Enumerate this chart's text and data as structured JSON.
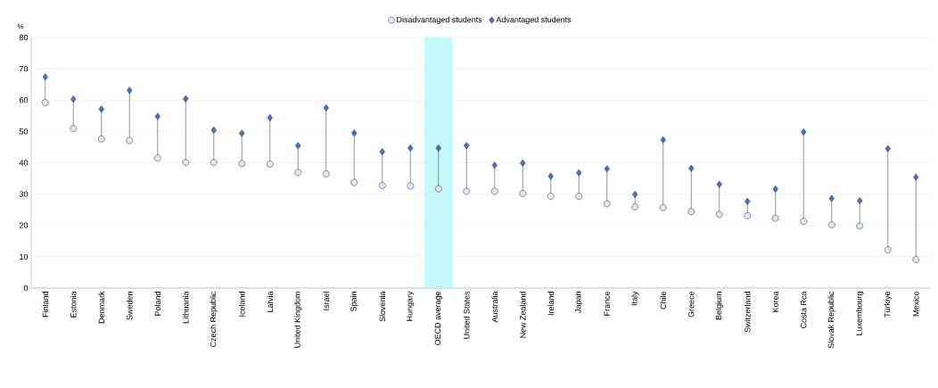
{
  "chart_data": {
    "type": "scatter",
    "ylabel": "%",
    "categories": [
      "Finland",
      "Estonia",
      "Denmark",
      "Sweden",
      "Poland",
      "Lithuania",
      "Czech Republic",
      "Iceland",
      "Latvia",
      "United Kingdom",
      "Israel",
      "Spain",
      "Slovenia",
      "Hungary",
      "OECD average",
      "United States",
      "Australia",
      "New Zealand",
      "Ireland",
      "Japan",
      "France",
      "Italy",
      "Chile",
      "Greece",
      "Belgium",
      "Switzerland",
      "Korea",
      "Costa Rca",
      "Slovak Republic",
      "Luxembourg",
      "Türkiye",
      "Mexico"
    ],
    "series": [
      {
        "name": "Disadvantaged students",
        "color": "#dce6f5",
        "marker": "circle",
        "values": [
          59.2,
          50.9,
          47.6,
          47.1,
          41.5,
          40.1,
          40.1,
          39.7,
          39.6,
          36.9,
          36.5,
          33.7,
          32.7,
          32.6,
          31.7,
          30.9,
          30.9,
          30.2,
          29.3,
          29.3,
          26.9,
          25.9,
          25.7,
          24.4,
          23.5,
          23.1,
          22.3,
          21.3,
          20.2,
          19.8,
          12.2,
          9.1
        ]
      },
      {
        "name": "Advantaged students",
        "color": "#4472c4",
        "marker": "diamond",
        "values": [
          67.4,
          60.3,
          57.1,
          63.1,
          54.8,
          60.4,
          50.4,
          49.4,
          54.4,
          45.5,
          57.5,
          49.5,
          43.5,
          44.7,
          44.7,
          45.5,
          39.2,
          39.9,
          35.7,
          36.8,
          38.1,
          29.9,
          47.3,
          38.2,
          33.1,
          27.7,
          31.6,
          49.8,
          28.6,
          27.9,
          44.5,
          35.4
        ]
      }
    ],
    "ylim": [
      0,
      80
    ],
    "yticks": [
      0,
      10,
      20,
      30,
      40,
      50,
      60,
      70,
      80
    ],
    "grid": "y",
    "legend": "top",
    "bands": [
      {
        "axis": "x",
        "from": "OECD average",
        "to": "OECD average",
        "color": "#c4f7f7"
      }
    ]
  }
}
